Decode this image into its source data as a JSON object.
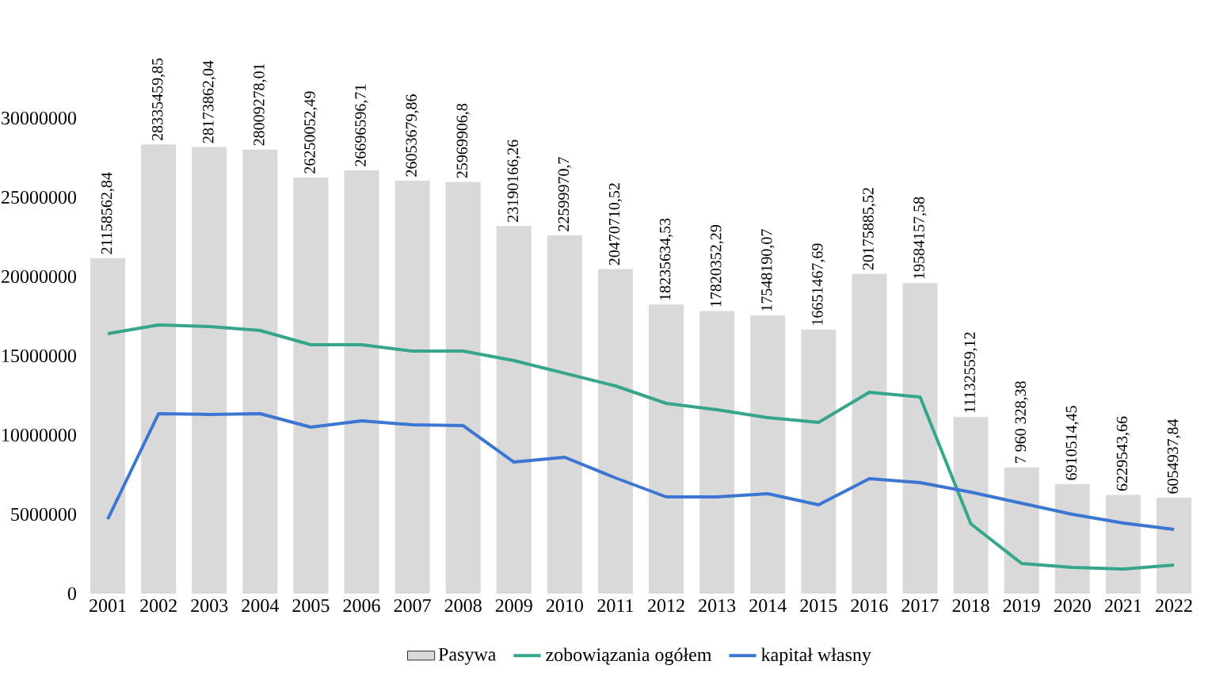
{
  "chart_data": {
    "type": "bar",
    "categories": [
      "2001",
      "2002",
      "2003",
      "2004",
      "2005",
      "2006",
      "2007",
      "2008",
      "2009",
      "2010",
      "2011",
      "2012",
      "2013",
      "2014",
      "2015",
      "2016",
      "2017",
      "2018",
      "2019",
      "2020",
      "2021",
      "2022"
    ],
    "series": [
      {
        "name": "Pasywa",
        "color": "#d9d9d9",
        "values": [
          21158562.84,
          28335459.85,
          28173862.04,
          28009278.01,
          26250052.49,
          26696596.71,
          26053679.86,
          25969906.8,
          23190166.26,
          22599970.7,
          20470710.52,
          18235634.53,
          17820352.29,
          17548190.07,
          16651467.69,
          20175885.52,
          19584157.58,
          11132559.12,
          7960328.38,
          6910514.45,
          6229543.66,
          6054937.84
        ],
        "value_labels": [
          "21158562,84",
          "28335459,85",
          "28173862,04",
          "28009278,01",
          "26250052,49",
          "26696596,71",
          "26053679,86",
          "25969906,8",
          "23190166,26",
          "22599970,7",
          "20470710,52",
          "18235634,53",
          "17820352,29",
          "17548190,07",
          "16651467,69",
          "20175885,52",
          "19584157,58",
          "11132559,12",
          "7 960 328,38",
          "6910514,45",
          "6229543,66",
          "6054937,84"
        ]
      },
      {
        "name": "zobowiązania ogółem",
        "type": "line",
        "color": "#35a58c",
        "values": [
          16400000,
          16950000,
          16850000,
          16600000,
          15700000,
          15700000,
          15300000,
          15300000,
          14700000,
          13900000,
          13100000,
          12000000,
          11600000,
          11100000,
          10800000,
          12700000,
          12400000,
          4400000,
          1900000,
          1650000,
          1550000,
          1800000
        ]
      },
      {
        "name": "kapitał własny",
        "type": "line",
        "color": "#3a76d2",
        "values": [
          4700000,
          11350000,
          11300000,
          11350000,
          10500000,
          10900000,
          10650000,
          10600000,
          8300000,
          8600000,
          7300000,
          6100000,
          6100000,
          6300000,
          5600000,
          7250000,
          7000000,
          6400000,
          5700000,
          5000000,
          4450000,
          4050000
        ]
      }
    ],
    "ylim": [
      0,
      30000000
    ],
    "yticks": [
      0,
      5000000,
      10000000,
      15000000,
      20000000,
      25000000,
      30000000
    ],
    "legend": "bottom"
  }
}
